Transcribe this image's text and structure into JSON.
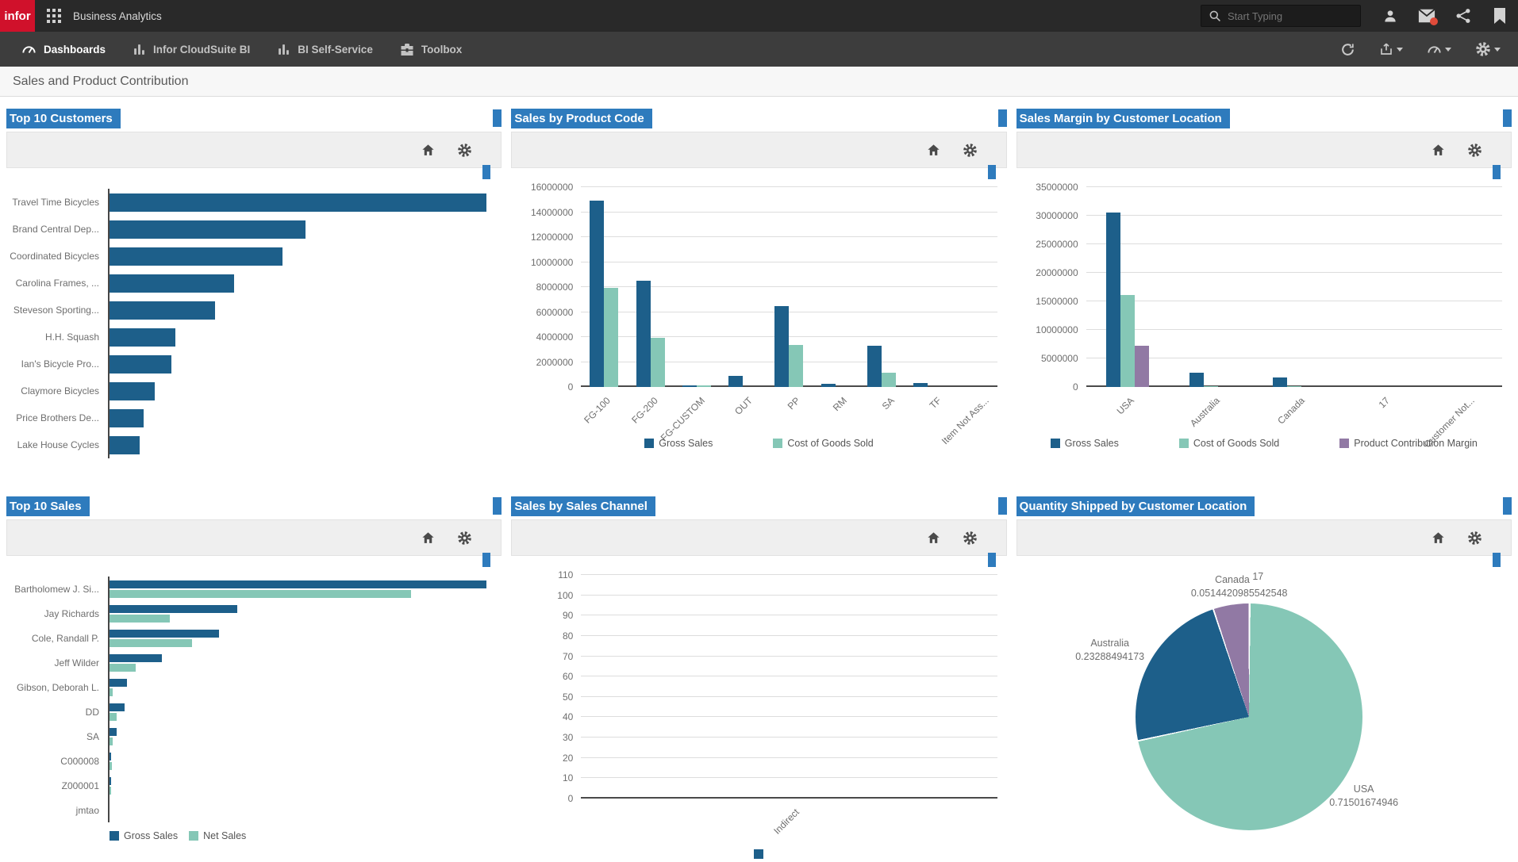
{
  "header": {
    "logo_text": "infor",
    "app_title": "Business Analytics",
    "search_placeholder": "Start Typing"
  },
  "nav": {
    "tabs": [
      {
        "label": "Dashboards",
        "active": true
      },
      {
        "label": "Infor CloudSuite BI",
        "active": false
      },
      {
        "label": "BI Self-Service",
        "active": false
      },
      {
        "label": "Toolbox",
        "active": false
      }
    ]
  },
  "page": {
    "title": "Sales and Product Contribution"
  },
  "colors": {
    "navy": "#1d5f8a",
    "teal": "#85c7b6",
    "purple": "#9179a4",
    "accent": "#2e7bbd",
    "logo_red": "#d0112b",
    "badge_red": "#e04b3a"
  },
  "chart_data": [
    {
      "id": "top-10-customers",
      "title": "Top 10 Customers",
      "type": "bar",
      "orientation": "horizontal",
      "note": "no value axis shown; values are percent of longest bar",
      "categories": [
        "Travel Time Bicycles",
        "Brand Central Dep...",
        "Coordinated Bicycles",
        "Carolina Frames, ...",
        "Steveson Sporting...",
        "H.H. Squash",
        "Ian's Bicycle Pro...",
        "Claymore Bicycles",
        "Price Brothers De...",
        "Lake House Cycles"
      ],
      "series": [
        {
          "name": "",
          "color_key": "navy",
          "values": [
            100,
            52,
            46,
            33,
            28,
            17.5,
            16.5,
            12,
            9,
            8
          ]
        }
      ],
      "xlim": [
        0,
        100
      ],
      "legend_position": "none"
    },
    {
      "id": "sales-by-product-code",
      "title": "Sales by Product Code",
      "type": "bar",
      "orientation": "vertical",
      "categories": [
        "FG-100",
        "FG-200",
        "FG-CUSTOM",
        "OUT",
        "PP",
        "RM",
        "SA",
        "TF",
        "Item Not Ass..."
      ],
      "series": [
        {
          "name": "Gross Sales",
          "color_key": "navy",
          "values": [
            14900000,
            8500000,
            150000,
            900000,
            6500000,
            280000,
            3300000,
            350000,
            0
          ]
        },
        {
          "name": "Cost of Goods Sold",
          "color_key": "teal",
          "values": [
            7950000,
            3950000,
            150000,
            0,
            3350000,
            0,
            1150000,
            0,
            0
          ]
        }
      ],
      "ylim": [
        0,
        16000000
      ],
      "ytick_step": 2000000,
      "grid": true,
      "legend_position": "bottom"
    },
    {
      "id": "sales-margin-by-customer-location",
      "title": "Sales Margin by Customer Location",
      "type": "bar",
      "orientation": "vertical",
      "categories": [
        "USA",
        "Australia",
        "Canada",
        "17",
        "Customer Not..."
      ],
      "series": [
        {
          "name": "Gross Sales",
          "color_key": "navy",
          "values": [
            30600000,
            2500000,
            1600000,
            0,
            0
          ]
        },
        {
          "name": "Cost of Goods Sold",
          "color_key": "teal",
          "values": [
            16100000,
            100000,
            150000,
            0,
            0
          ]
        },
        {
          "name": "Product Contribution Margin",
          "color_key": "purple",
          "values": [
            7200000,
            0,
            0,
            0,
            0
          ]
        }
      ],
      "ylim": [
        0,
        35000000
      ],
      "ytick_step": 5000000,
      "grid": true,
      "legend_position": "bottom"
    },
    {
      "id": "top-10-sales",
      "title": "Top 10 Sales",
      "type": "bar",
      "orientation": "horizontal",
      "note": "no value axis shown; values are percent of longest bar",
      "categories": [
        "Bartholomew J. Si...",
        "Jay Richards",
        "Cole, Randall P.",
        "Jeff Wilder",
        "Gibson, Deborah L.",
        "DD",
        "SA",
        "C000008",
        "Z000001",
        "jmtao"
      ],
      "series": [
        {
          "name": "Gross Sales",
          "color_key": "navy",
          "values": [
            100,
            34,
            29,
            14,
            4.6,
            3.9,
            1.8,
            0.4,
            0.4,
            0
          ]
        },
        {
          "name": "Net Sales",
          "color_key": "teal",
          "values": [
            80,
            16,
            22,
            7,
            0.9,
            1.8,
            0.9,
            0.7,
            0.4,
            0
          ]
        }
      ],
      "xlim": [
        0,
        100
      ],
      "legend_position": "bottom-left"
    },
    {
      "id": "sales-by-sales-channel",
      "title": "Sales by Sales Channel",
      "type": "bar",
      "orientation": "vertical",
      "categories": [
        "Indirect"
      ],
      "series": [
        {
          "name": "",
          "color_key": "navy",
          "values": [
            0
          ]
        }
      ],
      "ylim": [
        0,
        110
      ],
      "ytick_step": 10,
      "grid": true,
      "legend_position": "marker-only"
    },
    {
      "id": "quantity-shipped-by-customer-location",
      "title": "Quantity Shipped by Customer Location",
      "type": "pie",
      "slices": [
        {
          "name": "USA",
          "value": 0.71501674946,
          "color_key": "teal"
        },
        {
          "name": "Australia",
          "value": 0.23288494173,
          "color_key": "navy"
        },
        {
          "name": "Canada",
          "value": 0.0514420985542548,
          "color_key": "purple"
        },
        {
          "name": "17",
          "value": 0.00065621026,
          "color_key": "teal"
        }
      ],
      "pie_labels": {
        "canada": {
          "name": "Canada",
          "sup": "17",
          "value": "0.0514420985542548"
        },
        "australia": {
          "name": "Australia",
          "value": "0.23288494173"
        },
        "usa": {
          "name": "USA",
          "value": "0.71501674946"
        }
      }
    }
  ]
}
